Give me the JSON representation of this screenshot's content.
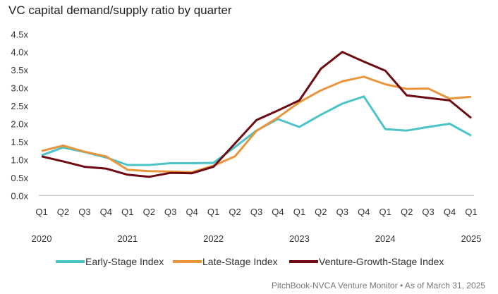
{
  "chart_data": {
    "type": "line",
    "title": "VC capital demand/supply ratio by quarter",
    "xlabel": "",
    "ylabel": "",
    "ylim": [
      0,
      4.5
    ],
    "yticks": [
      "0.0x",
      "0.5x",
      "1.0x",
      "1.5x",
      "2.0x",
      "2.5x",
      "3.0x",
      "3.5x",
      "4.0x",
      "4.5x"
    ],
    "ytick_values": [
      0,
      0.5,
      1,
      1.5,
      2,
      2.5,
      3,
      3.5,
      4,
      4.5
    ],
    "categories": [
      "Q1",
      "Q2",
      "Q3",
      "Q4",
      "Q1",
      "Q2",
      "Q3",
      "Q4",
      "Q1",
      "Q2",
      "Q3",
      "Q4",
      "Q1",
      "Q2",
      "Q3",
      "Q4",
      "Q1",
      "Q2",
      "Q3",
      "Q4",
      "Q1"
    ],
    "year_labels": [
      {
        "label": "2020",
        "index": 0
      },
      {
        "label": "2021",
        "index": 4
      },
      {
        "label": "2022",
        "index": 8
      },
      {
        "label": "2023",
        "index": 12
      },
      {
        "label": "2024",
        "index": 16
      },
      {
        "label": "2025",
        "index": 20
      }
    ],
    "grid": false,
    "legend_position": "bottom",
    "series": [
      {
        "name": "Early-Stage Index",
        "color": "#4BC3C7",
        "values": [
          1.12,
          1.34,
          1.21,
          1.06,
          0.85,
          0.85,
          0.9,
          0.9,
          0.91,
          1.35,
          1.81,
          2.13,
          1.91,
          2.25,
          2.56,
          2.76,
          1.85,
          1.81,
          1.91,
          2.0,
          1.67
        ]
      },
      {
        "name": "Late-Stage Index",
        "color": "#E8953C",
        "values": [
          1.24,
          1.39,
          1.22,
          1.09,
          0.72,
          0.68,
          0.67,
          0.65,
          0.83,
          1.09,
          1.8,
          2.17,
          2.6,
          2.93,
          3.18,
          3.31,
          3.1,
          2.97,
          2.98,
          2.7,
          2.75
        ]
      },
      {
        "name": "Venture-Growth-Stage Index",
        "color": "#6E0B12",
        "values": [
          1.09,
          0.95,
          0.8,
          0.75,
          0.58,
          0.52,
          0.63,
          0.62,
          0.8,
          1.45,
          2.1,
          2.37,
          2.65,
          3.53,
          4.0,
          3.73,
          3.48,
          2.79,
          2.72,
          2.65,
          2.16
        ]
      }
    ]
  },
  "footer": "PitchBook-NVCA Venture Monitor  •  As of March 31, 2025"
}
